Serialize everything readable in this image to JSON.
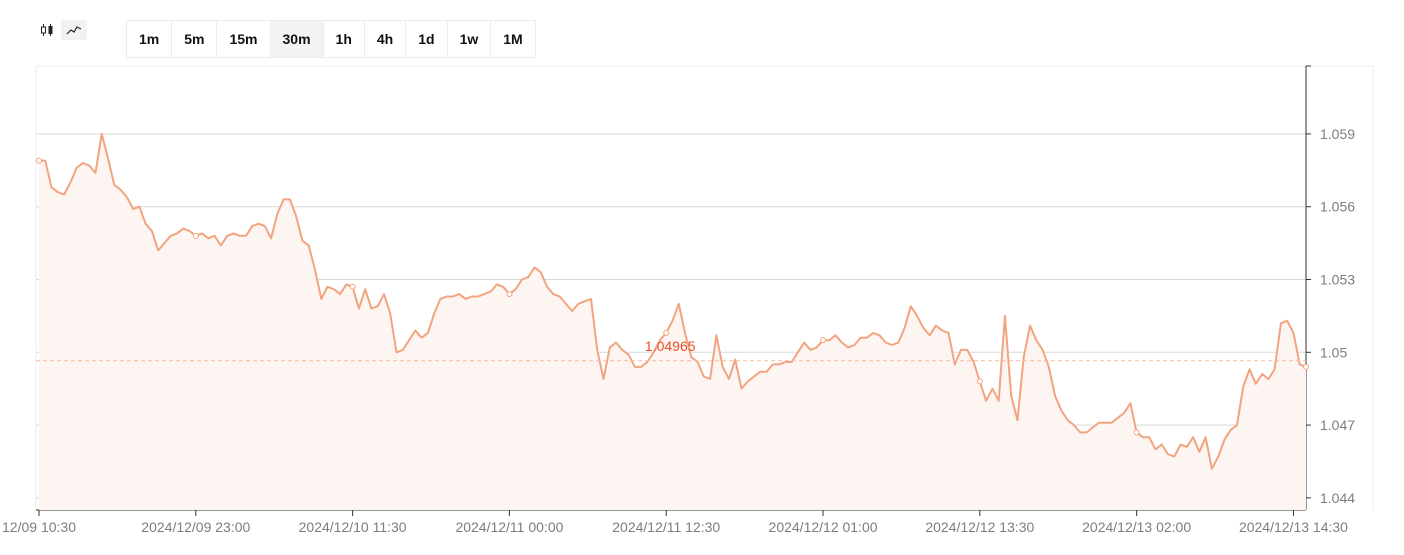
{
  "toolbar": {
    "chart_types": [
      {
        "icon": "candlestick-icon",
        "active": false
      },
      {
        "icon": "line-chart-icon",
        "active": true
      }
    ],
    "timeframes": [
      "1m",
      "5m",
      "15m",
      "30m",
      "1h",
      "4h",
      "1d",
      "1w",
      "1M"
    ],
    "active_timeframe": "30m"
  },
  "colors": {
    "line": "#f2a47f",
    "fill": "#fdf5f1",
    "current_price_line": "#f7b9a0",
    "current_price_text": "#e8502c",
    "grid": "#d9d9d9",
    "axis_text": "#7d7d7d"
  },
  "chart_data": {
    "type": "area",
    "title": "",
    "xlabel": "",
    "ylabel": "",
    "ylim": [
      1.0435,
      1.0618
    ],
    "y_ticks": [
      "1.059",
      "1.056",
      "1.053",
      "1.05",
      "1.047",
      "1.044"
    ],
    "y_tick_values": [
      1.059,
      1.056,
      1.053,
      1.05,
      1.047,
      1.044
    ],
    "x_tick_labels": [
      "12/09 10:30",
      "2024/12/09 23:00",
      "2024/12/10 11:30",
      "2024/12/11 00:00",
      "2024/12/11 12:30",
      "2024/12/12 01:00",
      "2024/12/12 13:30",
      "2024/12/13 02:00",
      "2024/12/13 14:30"
    ],
    "x_tick_index": [
      0,
      25,
      50,
      75,
      100,
      125,
      150,
      175,
      200
    ],
    "grid": true,
    "current_price": "1.04965",
    "current_price_value": 1.04965,
    "current_price_index": 100,
    "series": [
      {
        "values": [
          1.0579,
          1.0579,
          1.0568,
          1.0566,
          1.0565,
          1.057,
          1.0576,
          1.0578,
          1.0577,
          1.0574,
          1.059,
          1.058,
          1.0569,
          1.0567,
          1.0564,
          1.0559,
          1.056,
          1.0553,
          1.055,
          1.0542,
          1.0545,
          1.0548,
          1.0549,
          1.0551,
          1.055,
          1.0548,
          1.0549,
          1.0547,
          1.0548,
          1.0544,
          1.0548,
          1.0549,
          1.0548,
          1.0548,
          1.0552,
          1.0553,
          1.0552,
          1.0547,
          1.0557,
          1.0563,
          1.0563,
          1.0556,
          1.0546,
          1.0544,
          1.0534,
          1.0522,
          1.0527,
          1.0526,
          1.0524,
          1.0528,
          1.0527,
          1.0518,
          1.0526,
          1.0518,
          1.0519,
          1.0524,
          1.0516,
          1.05,
          1.0501,
          1.0505,
          1.0509,
          1.0506,
          1.0508,
          1.0516,
          1.0522,
          1.0523,
          1.0523,
          1.0524,
          1.0522,
          1.0523,
          1.0523,
          1.0524,
          1.0525,
          1.0528,
          1.0527,
          1.0524,
          1.0526,
          1.053,
          1.0531,
          1.0535,
          1.0533,
          1.0527,
          1.0524,
          1.0523,
          1.052,
          1.0517,
          1.052,
          1.0521,
          1.0522,
          1.0501,
          1.0489,
          1.0502,
          1.0504,
          1.0501,
          1.0499,
          1.0494,
          1.0494,
          1.0496,
          1.05,
          1.0505,
          1.0508,
          1.0513,
          1.052,
          1.0508,
          1.0498,
          1.0496,
          1.049,
          1.0489,
          1.0507,
          1.0494,
          1.0489,
          1.0497,
          1.0485,
          1.0488,
          1.049,
          1.0492,
          1.0492,
          1.0495,
          1.0495,
          1.0496,
          1.0496,
          1.05,
          1.0504,
          1.0501,
          1.0502,
          1.0505,
          1.0505,
          1.0507,
          1.0504,
          1.0502,
          1.0503,
          1.0506,
          1.0506,
          1.0508,
          1.0507,
          1.0504,
          1.0503,
          1.0504,
          1.051,
          1.0519,
          1.0515,
          1.051,
          1.0507,
          1.0511,
          1.0509,
          1.0508,
          1.0495,
          1.0501,
          1.0501,
          1.0496,
          1.0488,
          1.048,
          1.0485,
          1.048,
          1.0515,
          1.0482,
          1.0472,
          1.0498,
          1.0511,
          1.0505,
          1.0501,
          1.0494,
          1.0482,
          1.0476,
          1.0472,
          1.047,
          1.0467,
          1.0467,
          1.0469,
          1.0471,
          1.0471,
          1.0471,
          1.0473,
          1.0475,
          1.0479,
          1.0467,
          1.0465,
          1.0465,
          1.046,
          1.0462,
          1.0458,
          1.0457,
          1.0462,
          1.0461,
          1.0465,
          1.0459,
          1.0465,
          1.0452,
          1.0457,
          1.0464,
          1.0468,
          1.047,
          1.0486,
          1.0493,
          1.0487,
          1.0491,
          1.0489,
          1.0493,
          1.0512,
          1.0513,
          1.0508,
          1.0495,
          1.0494
        ]
      }
    ]
  }
}
